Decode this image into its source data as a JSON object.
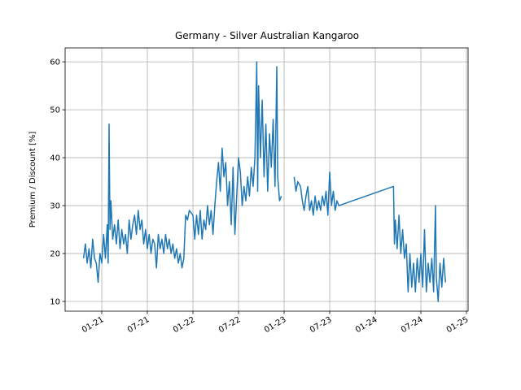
{
  "chart_data": {
    "type": "line",
    "title": "Germany - Silver Australian Kangaroo",
    "ylabel": "Premium / Discount [%]",
    "x": [
      2020.8,
      2020.82,
      2020.84,
      2020.86,
      2020.88,
      2020.9,
      2020.92,
      2020.94,
      2020.96,
      2020.98,
      2021.0,
      2021.02,
      2021.04,
      2021.06,
      2021.07,
      2021.08,
      2021.09,
      2021.1,
      2021.12,
      2021.14,
      2021.16,
      2021.18,
      2021.2,
      2021.22,
      2021.24,
      2021.26,
      2021.28,
      2021.3,
      2021.32,
      2021.34,
      2021.36,
      2021.38,
      2021.4,
      2021.42,
      2021.44,
      2021.46,
      2021.48,
      2021.5,
      2021.52,
      2021.54,
      2021.56,
      2021.58,
      2021.6,
      2021.62,
      2021.64,
      2021.66,
      2021.68,
      2021.7,
      2021.72,
      2021.74,
      2021.76,
      2021.78,
      2021.8,
      2021.82,
      2021.84,
      2021.86,
      2021.88,
      2021.9,
      2021.92,
      2021.94,
      2021.96,
      2022.0,
      2022.02,
      2022.04,
      2022.06,
      2022.08,
      2022.1,
      2022.12,
      2022.14,
      2022.16,
      2022.18,
      2022.2,
      2022.22,
      2022.24,
      2022.26,
      2022.28,
      2022.3,
      2022.32,
      2022.34,
      2022.36,
      2022.38,
      2022.4,
      2022.42,
      2022.44,
      2022.46,
      2022.48,
      2022.5,
      2022.52,
      2022.54,
      2022.56,
      2022.58,
      2022.6,
      2022.62,
      2022.64,
      2022.66,
      2022.68,
      2022.7,
      2022.71,
      2022.72,
      2022.74,
      2022.76,
      2022.78,
      2022.8,
      2022.82,
      2022.84,
      2022.86,
      2022.88,
      2022.9,
      2022.92,
      2022.93,
      2022.95,
      2022.97,
      2023.05,
      2023.11,
      2023.13,
      2023.15,
      2023.18,
      2023.2,
      2023.22,
      2023.24,
      2023.26,
      2023.28,
      2023.3,
      2023.32,
      2023.34,
      2023.36,
      2023.38,
      2023.4,
      2023.42,
      2023.44,
      2023.46,
      2023.48,
      2023.5,
      2023.52,
      2023.54,
      2023.56,
      2023.58,
      2023.6,
      2024.2,
      2024.21,
      2024.22,
      2024.24,
      2024.26,
      2024.28,
      2024.3,
      2024.32,
      2024.34,
      2024.36,
      2024.38,
      2024.4,
      2024.42,
      2024.44,
      2024.46,
      2024.48,
      2024.5,
      2024.52,
      2024.54,
      2024.56,
      2024.58,
      2024.6,
      2024.62,
      2024.64,
      2024.66,
      2024.67,
      2024.69,
      2024.71,
      2024.73,
      2024.75,
      2024.77
    ],
    "series": [
      {
        "color": "#1f77b4",
        "values": [
          19,
          22,
          18,
          21,
          17,
          23,
          19,
          18,
          14,
          20,
          18,
          24,
          19,
          26,
          18,
          47,
          25,
          31,
          23,
          26,
          22,
          27,
          21,
          25,
          22,
          24,
          20,
          27,
          23,
          26,
          28,
          24,
          29,
          25,
          27,
          22,
          25,
          21,
          24,
          20,
          23,
          22,
          17,
          24,
          21,
          23,
          20,
          24,
          21,
          23,
          20,
          22,
          19,
          21,
          18,
          20,
          17,
          19,
          28,
          27,
          29,
          28,
          23,
          28,
          24,
          29,
          23,
          27,
          25,
          30,
          26,
          29,
          24,
          30,
          35,
          39,
          33,
          42,
          36,
          39,
          30,
          35,
          26,
          38,
          24,
          32,
          40,
          37,
          30,
          34,
          31,
          36,
          32,
          38,
          34,
          40,
          60,
          33,
          55,
          40,
          52,
          36,
          47,
          33,
          45,
          38,
          48,
          34,
          59,
          36,
          31,
          32,
          null,
          36,
          33,
          35,
          34,
          31,
          29,
          32,
          34,
          29,
          31,
          28,
          32,
          29,
          31,
          29,
          32,
          30,
          33,
          28,
          37,
          30,
          33,
          29,
          31,
          30,
          34,
          22,
          27,
          21,
          28,
          20,
          25,
          19,
          22,
          12,
          20,
          13,
          18,
          12,
          19,
          14,
          20,
          13,
          25,
          12,
          18,
          14,
          19,
          12,
          30,
          15,
          10,
          18,
          13,
          19,
          14
        ]
      }
    ],
    "xlim": [
      2020.598,
      2025.018
    ],
    "xticks": [
      {
        "value": 2021.0,
        "label": "01-21"
      },
      {
        "value": 2021.5,
        "label": "07-21"
      },
      {
        "value": 2022.0,
        "label": "01-22"
      },
      {
        "value": 2022.5,
        "label": "07-22"
      },
      {
        "value": 2023.0,
        "label": "01-23"
      },
      {
        "value": 2023.5,
        "label": "07-23"
      },
      {
        "value": 2024.0,
        "label": "01-24"
      },
      {
        "value": 2024.5,
        "label": "07-24"
      },
      {
        "value": 2025.0,
        "label": "01-25"
      }
    ],
    "ylim": [
      7.97,
      62.9
    ],
    "yticks": [
      10,
      20,
      30,
      40,
      50,
      60
    ],
    "grid": true
  }
}
